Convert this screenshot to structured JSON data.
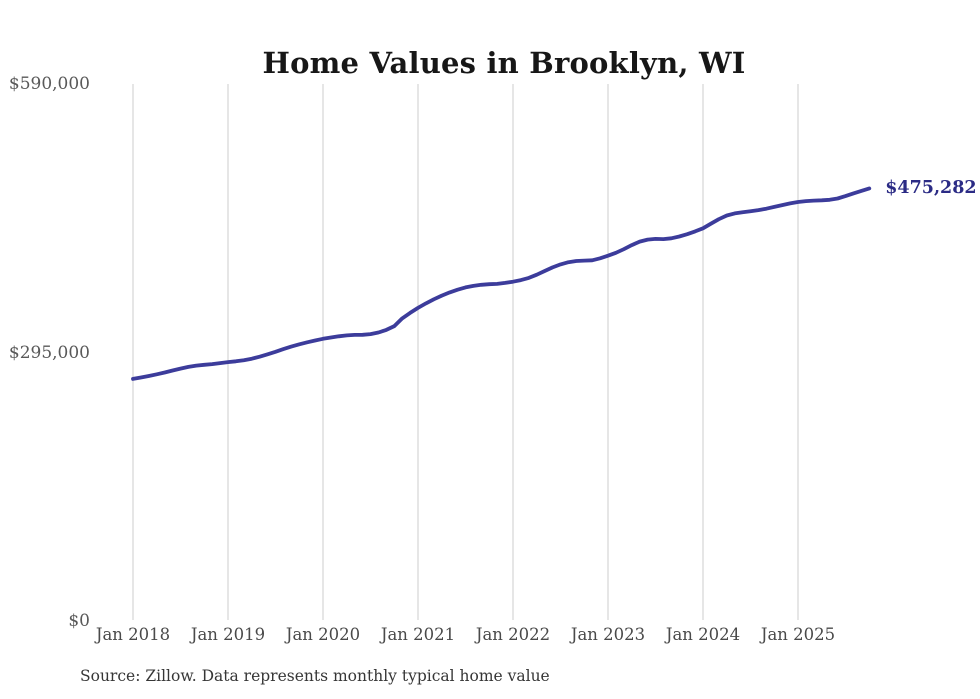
{
  "title": "Home Values in Brooklyn, WI",
  "source_note": "Source: Zillow. Data represents monthly typical home value",
  "end_label": "$475,282",
  "colors": {
    "background": "#ffffff",
    "line": "#3c3c9b",
    "end_label": "#2b2b85",
    "gridline": "#cccccc",
    "y_axis_text": "#595959",
    "x_axis_text": "#4a4a4a",
    "title_text": "#171717",
    "source_text": "#363636"
  },
  "chart_data": {
    "type": "line",
    "title": "Home Values in Brooklyn, WI",
    "series_name": "Monthly typical home value",
    "unit": "USD",
    "grid": "vertical",
    "legend": "none",
    "ylim": [
      0,
      590000
    ],
    "y_ticks": [
      0,
      295000,
      590000
    ],
    "y_tick_labels": [
      "$0",
      "$295,000",
      "$590,000"
    ],
    "x_tick_labels": [
      "Jan 2018",
      "Jan 2019",
      "Jan 2020",
      "Jan 2021",
      "Jan 2022",
      "Jan 2023",
      "Jan 2024",
      "Jan 2025"
    ],
    "x_range": [
      "2018-01",
      "2025-10"
    ],
    "last_point_value": 475282,
    "last_point_label": "$475,282",
    "months": [
      "2018-01",
      "2018-02",
      "2018-03",
      "2018-04",
      "2018-05",
      "2018-06",
      "2018-07",
      "2018-08",
      "2018-09",
      "2018-10",
      "2018-11",
      "2018-12",
      "2019-01",
      "2019-02",
      "2019-03",
      "2019-04",
      "2019-05",
      "2019-06",
      "2019-07",
      "2019-08",
      "2019-09",
      "2019-10",
      "2019-11",
      "2019-12",
      "2020-01",
      "2020-02",
      "2020-03",
      "2020-04",
      "2020-05",
      "2020-06",
      "2020-07",
      "2020-08",
      "2020-09",
      "2020-10",
      "2020-11",
      "2020-12",
      "2021-01",
      "2021-02",
      "2021-03",
      "2021-04",
      "2021-05",
      "2021-06",
      "2021-07",
      "2021-08",
      "2021-09",
      "2021-10",
      "2021-11",
      "2021-12",
      "2022-01",
      "2022-02",
      "2022-03",
      "2022-04",
      "2022-05",
      "2022-06",
      "2022-07",
      "2022-08",
      "2022-09",
      "2022-10",
      "2022-11",
      "2022-12",
      "2023-01",
      "2023-02",
      "2023-03",
      "2023-04",
      "2023-05",
      "2023-06",
      "2023-07",
      "2023-08",
      "2023-09",
      "2023-10",
      "2023-11",
      "2023-12",
      "2024-01",
      "2024-02",
      "2024-03",
      "2024-04",
      "2024-05",
      "2024-06",
      "2024-07",
      "2024-08",
      "2024-09",
      "2024-10",
      "2024-11",
      "2024-12",
      "2025-01",
      "2025-02",
      "2025-03",
      "2025-04",
      "2025-05",
      "2025-06",
      "2025-07",
      "2025-08",
      "2025-09",
      "2025-10"
    ],
    "values": [
      266000,
      267500,
      269200,
      271000,
      273000,
      275200,
      277300,
      279200,
      280600,
      281500,
      282300,
      283300,
      284500,
      285300,
      286500,
      288200,
      290400,
      293000,
      295800,
      298700,
      301500,
      304000,
      306200,
      308200,
      310000,
      311500,
      312800,
      313800,
      314300,
      314500,
      315200,
      317000,
      319800,
      324000,
      332500,
      338500,
      344000,
      349000,
      353500,
      357500,
      361000,
      364000,
      366500,
      368200,
      369400,
      370000,
      370400,
      371500,
      372800,
      374500,
      377000,
      380500,
      384500,
      388500,
      391800,
      394200,
      395500,
      396000,
      396300,
      398500,
      401300,
      404500,
      408500,
      413000,
      416800,
      419000,
      419800,
      419600,
      420500,
      422500,
      425000,
      428000,
      431500,
      436500,
      441500,
      445500,
      447800,
      449200,
      450300,
      451500,
      453000,
      455000,
      457000,
      458800,
      460300,
      461300,
      461900,
      462200,
      462800,
      464200,
      466800,
      469800,
      472500,
      475282
    ]
  }
}
